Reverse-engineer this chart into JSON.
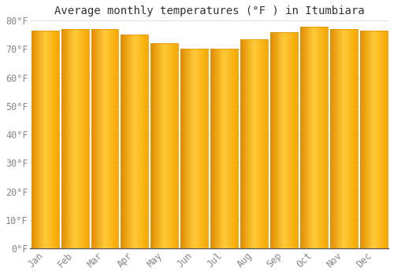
{
  "title": "Average monthly temperatures (°F ) in Itumbiara",
  "months": [
    "Jan",
    "Feb",
    "Mar",
    "Apr",
    "May",
    "Jun",
    "Jul",
    "Aug",
    "Sep",
    "Oct",
    "Nov",
    "Dec"
  ],
  "values": [
    76.5,
    77.0,
    77.0,
    75.0,
    72.0,
    70.0,
    70.0,
    73.5,
    76.0,
    78.0,
    77.0,
    76.5
  ],
  "bar_color_center": "#FFCA3A",
  "bar_color_edge": "#F5A800",
  "bar_color_dark": "#E08C00",
  "ylim": [
    0,
    80
  ],
  "yticks": [
    0,
    10,
    20,
    30,
    40,
    50,
    60,
    70,
    80
  ],
  "background_color": "#ffffff",
  "plot_bg_color": "#ffffff",
  "grid_color": "#e0e0e0",
  "title_fontsize": 10,
  "tick_fontsize": 8.5,
  "tick_color": "#888888",
  "spine_color": "#555555"
}
